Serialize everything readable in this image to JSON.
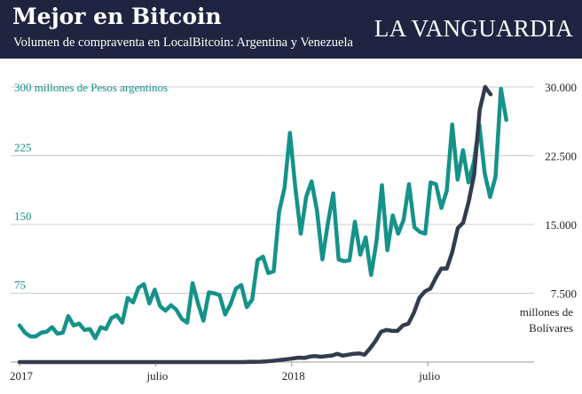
{
  "header": {
    "title": "Mejor en Bitcoin",
    "subtitle": "Volumen de compraventa en LocalBitcoin: Argentina y Venezuela",
    "brand": "LA VANGUARDIA"
  },
  "colors": {
    "header_bg": "#1f2540",
    "argentina": "#15928a",
    "venezuela": "#333c4e",
    "grid": "#cccccc",
    "axis_text": "#222222"
  },
  "chart_data": {
    "type": "line",
    "x_ticks": [
      {
        "label": "2017",
        "week": 0
      },
      {
        "label": "julio",
        "week": 26
      },
      {
        "label": "2018",
        "week": 52
      },
      {
        "label": "julio",
        "week": 78
      }
    ],
    "left_axis": {
      "unit_label": "300 millones de Pesos argentinos",
      "ticks": [
        75,
        150,
        225
      ],
      "tick_labels": [
        "75",
        "150",
        "225"
      ],
      "range": [
        0,
        300
      ]
    },
    "right_axis": {
      "unit_label_line1": "millones de",
      "unit_label_line2": "Bolívares",
      "ticks": [
        7500,
        15000,
        22500,
        30000
      ],
      "tick_labels": [
        "7.500",
        "15.000",
        "22.500",
        "30.000"
      ],
      "range": [
        0,
        30000
      ]
    },
    "series": [
      {
        "name": "Argentina (millones de Pesos argentinos)",
        "axis": "left",
        "values": [
          40,
          32,
          28,
          28,
          32,
          33,
          38,
          31,
          32,
          50,
          40,
          42,
          35,
          36,
          26,
          38,
          36,
          48,
          51,
          43,
          70,
          65,
          81,
          85,
          64,
          79,
          61,
          56,
          62,
          57,
          47,
          43,
          86,
          64,
          45,
          76,
          75,
          73,
          52,
          63,
          80,
          84,
          60,
          68,
          111,
          115,
          97,
          99,
          164,
          190,
          250,
          190,
          140,
          180,
          197,
          165,
          112,
          151,
          184,
          112,
          110,
          111,
          153,
          117,
          136,
          95,
          132,
          193,
          122,
          160,
          140,
          155,
          194,
          147,
          142,
          140,
          196,
          194,
          168,
          187,
          259,
          199,
          231,
          196,
          218,
          259,
          206,
          180,
          202,
          298,
          264
        ],
        "x_end": 93
      },
      {
        "name": "Venezuela (millones de Bolívares)",
        "axis": "right",
        "values": [
          0,
          0,
          0,
          0,
          0,
          0,
          0,
          0,
          0,
          0,
          0,
          0,
          0,
          0,
          0,
          0,
          0,
          0,
          0,
          0,
          0,
          0,
          0,
          0,
          0,
          0,
          0,
          0,
          0,
          0,
          0,
          0,
          0,
          0,
          0,
          0,
          0,
          0,
          0,
          0,
          0,
          0,
          20,
          30,
          40,
          80,
          120,
          180,
          250,
          320,
          400,
          480,
          450,
          600,
          650,
          580,
          650,
          700,
          900,
          700,
          800,
          900,
          950,
          800,
          1500,
          2300,
          3300,
          3500,
          3400,
          3400,
          4000,
          4200,
          5400,
          7000,
          7700,
          8000,
          9200,
          10200,
          10200,
          12000,
          14600,
          15200,
          17500,
          20500,
          27500,
          30000,
          29200
        ],
        "x_end": 90
      }
    ]
  }
}
